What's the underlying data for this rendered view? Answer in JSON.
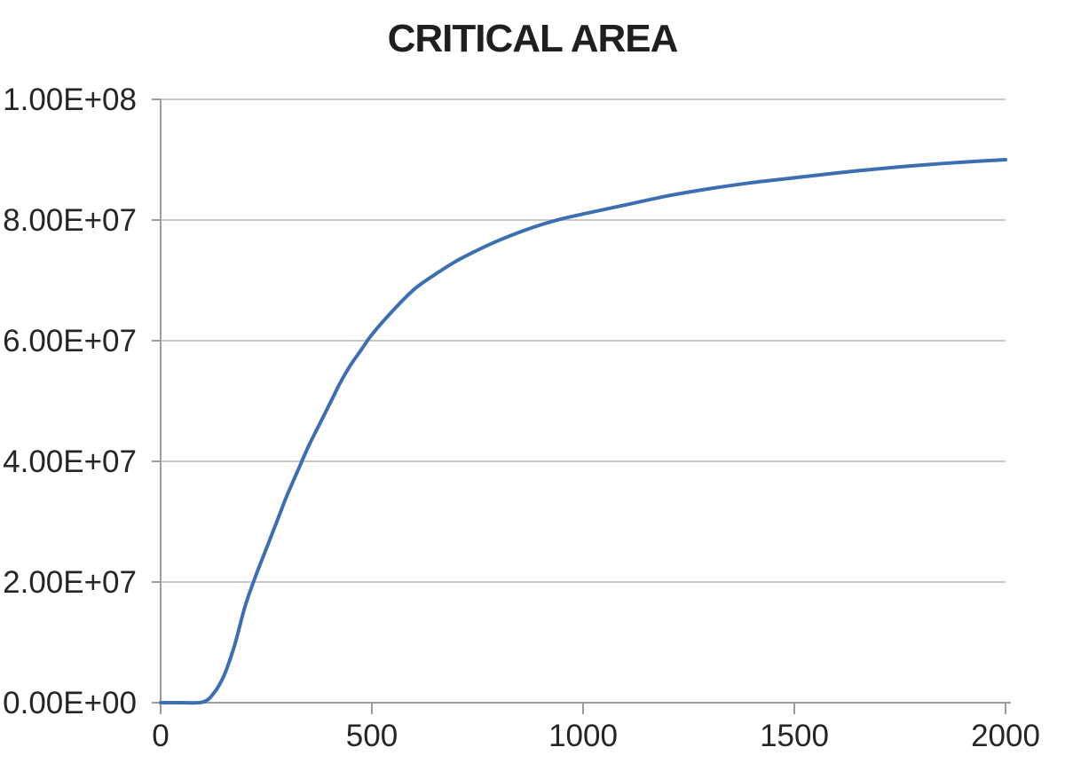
{
  "chart": {
    "title": "CRITICAL AREA"
  },
  "colors": {
    "background": "#FFFFFF",
    "title_text": "#1F1F1F",
    "axis_label_text": "#262626",
    "gridline": "#C9C9C9",
    "axis_line": "#9B9B9B",
    "series_line": "#3C6EB4"
  },
  "chart_data": {
    "type": "line",
    "title": "CRITICAL AREA",
    "xlabel": "",
    "ylabel": "",
    "xlim": [
      0,
      2000
    ],
    "ylim": [
      0,
      100000000
    ],
    "grid": true,
    "legend": false,
    "x_ticks": [
      {
        "value": 0,
        "label": "0"
      },
      {
        "value": 500,
        "label": "500"
      },
      {
        "value": 1000,
        "label": "1000"
      },
      {
        "value": 1500,
        "label": "1500"
      },
      {
        "value": 2000,
        "label": "2000"
      }
    ],
    "y_ticks": [
      {
        "value": 0,
        "label": "0.00E+00"
      },
      {
        "value": 20000000,
        "label": "2.00E+07"
      },
      {
        "value": 40000000,
        "label": "4.00E+07"
      },
      {
        "value": 60000000,
        "label": "6.00E+07"
      },
      {
        "value": 80000000,
        "label": "8.00E+07"
      },
      {
        "value": 100000000,
        "label": "1.00E+08"
      }
    ],
    "series": [
      {
        "name": "critical area",
        "color": "#3C6EB4",
        "x": [
          0,
          50,
          100,
          125,
          150,
          175,
          200,
          225,
          250,
          275,
          300,
          325,
          350,
          375,
          400,
          425,
          450,
          475,
          500,
          550,
          600,
          650,
          700,
          750,
          800,
          850,
          900,
          950,
          1000,
          1100,
          1200,
          1300,
          1400,
          1500,
          1600,
          1700,
          1800,
          1900,
          2000
        ],
        "y": [
          0,
          0,
          100000,
          1500000,
          4500000,
          9500000,
          16000000,
          21000000,
          25500000,
          30000000,
          34500000,
          38500000,
          42500000,
          46000000,
          49500000,
          53000000,
          56000000,
          58500000,
          61000000,
          65000000,
          68500000,
          71000000,
          73200000,
          75000000,
          76600000,
          78000000,
          79200000,
          80200000,
          81000000,
          82500000,
          84000000,
          85200000,
          86200000,
          87000000,
          87800000,
          88500000,
          89100000,
          89600000,
          90000000
        ]
      }
    ]
  }
}
